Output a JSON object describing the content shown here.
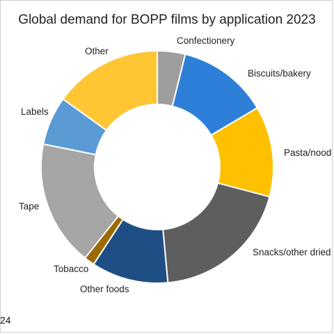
{
  "chart_data": {
    "type": "pie",
    "title": "Global demand for BOPP films by application 2023",
    "donut": true,
    "slices": [
      {
        "label": "Confectionery",
        "value": 4,
        "color": "#9e9e9e"
      },
      {
        "label": "Biscuits/bakery",
        "value": 13,
        "color": "#2e7fd8"
      },
      {
        "label": "Pasta/nood",
        "value": 13,
        "color": "#ffc000"
      },
      {
        "label": "Snacks/other dried",
        "value": 20,
        "color": "#5e5e5e"
      },
      {
        "label": "Other foods",
        "value": 11,
        "color": "#1f4e85"
      },
      {
        "label": "Tobacco",
        "value": 1.5,
        "color": "#9c6b00"
      },
      {
        "label": "Tape",
        "value": 18,
        "color": "#a6a6a6"
      },
      {
        "label": "Labels",
        "value": 7,
        "color": "#5b9bd5"
      },
      {
        "label": "Other",
        "value": 15.5,
        "color": "#ffc533"
      }
    ]
  },
  "footer": {
    "source": "24"
  }
}
